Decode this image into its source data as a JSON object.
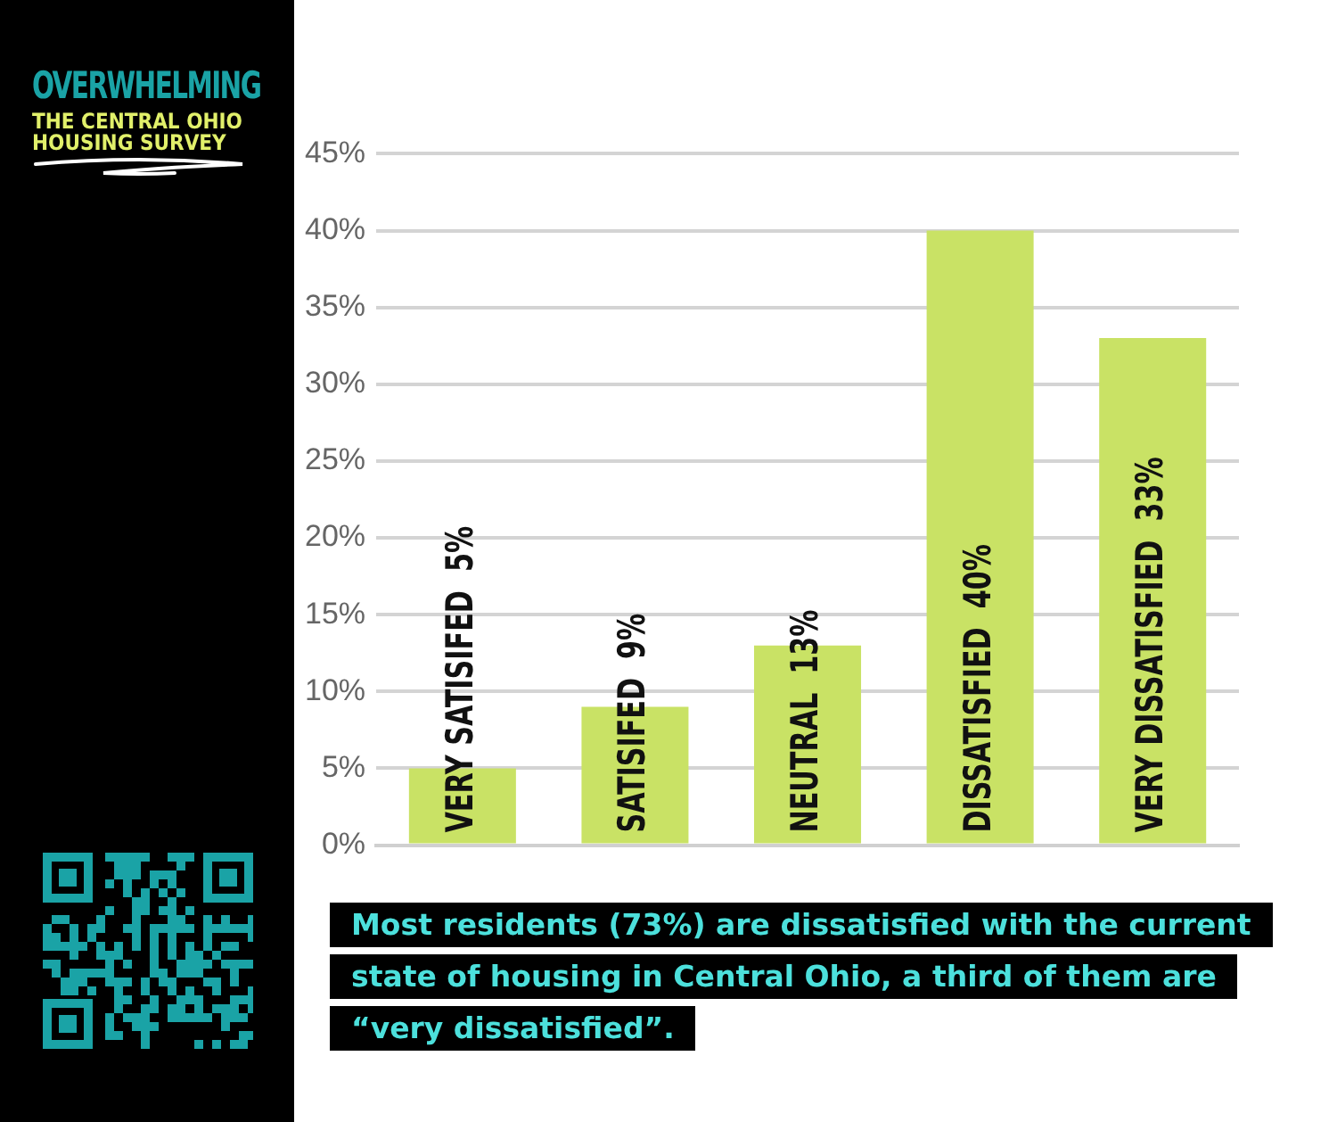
{
  "chart_data": {
    "type": "bar",
    "title": "OVERWHELMING",
    "subtitle": "THE CENTRAL OHIO HOUSING SURVEY",
    "categories": [
      "VERY SATISIFED",
      "SATISIFED",
      "NEUTRAL",
      "DISSATISFIED",
      "VERY DISSATISFIED"
    ],
    "values": [
      5,
      9,
      13,
      40,
      33
    ],
    "value_labels": [
      "5%",
      "9%",
      "13%",
      "40%",
      "33%"
    ],
    "color": "#c9e265",
    "ylim": [
      0,
      45
    ],
    "yticks": [
      {
        "value": 0,
        "label": "0%"
      },
      {
        "value": 5,
        "label": "5%"
      },
      {
        "value": 10,
        "label": "10%"
      },
      {
        "value": 15,
        "label": "15%"
      },
      {
        "value": 20,
        "label": "20%"
      },
      {
        "value": 25,
        "label": "25%"
      },
      {
        "value": 30,
        "label": "30%"
      },
      {
        "value": 35,
        "label": "35%"
      },
      {
        "value": 40,
        "label": "40%"
      },
      {
        "value": 45,
        "label": "45%"
      }
    ],
    "grid": "y",
    "legend": false,
    "annotations": [
      "Most residents (73%) are dissatisfied with the current state of housing in Central Ohio, a third of them are “very dissatisfied”."
    ]
  }
}
